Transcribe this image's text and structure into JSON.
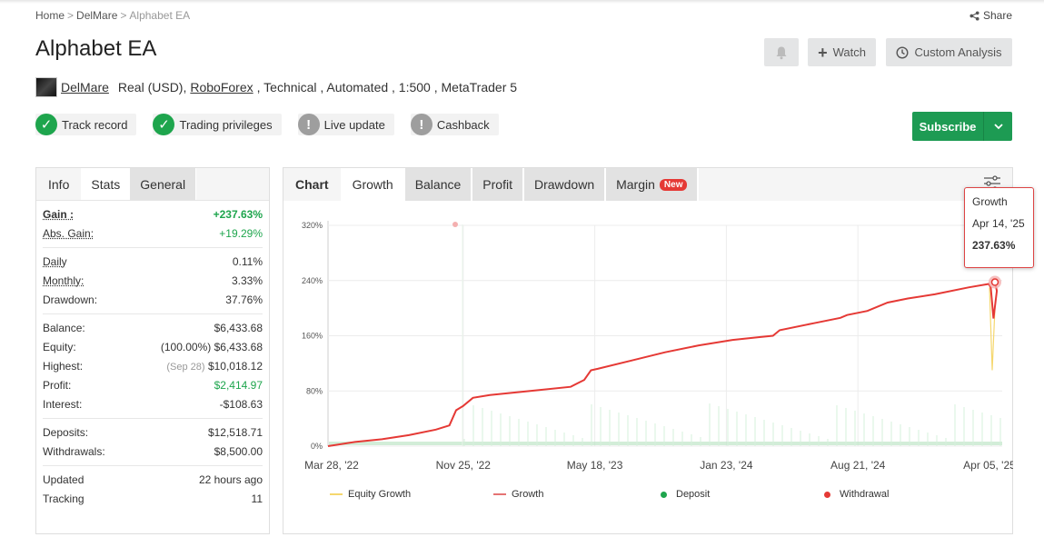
{
  "breadcrumb": {
    "home": "Home",
    "author": "DelMare",
    "current": "Alphabet EA"
  },
  "share_label": "Share",
  "title": "Alphabet EA",
  "header_buttons": {
    "watch": "Watch",
    "custom_analysis": "Custom Analysis"
  },
  "meta": {
    "author": "DelMare",
    "account": "Real (USD),",
    "broker": "RoboForex",
    "rest": ", Technical , Automated , 1:500 , MetaTrader 5"
  },
  "badges": [
    {
      "label": "Track record",
      "status": "ok"
    },
    {
      "label": "Trading privileges",
      "status": "ok"
    },
    {
      "label": "Live update",
      "status": "warn"
    },
    {
      "label": "Cashback",
      "status": "warn"
    }
  ],
  "subscribe_label": "Subscribe",
  "left_tabs": [
    "Info",
    "Stats",
    "General"
  ],
  "stats": {
    "gain_label": "Gain :",
    "gain": "+237.63%",
    "abs_gain_label": "Abs. Gain:",
    "abs_gain": "+19.29%",
    "daily_label": "Daily",
    "daily": "0.11%",
    "monthly_label": "Monthly:",
    "monthly": "3.33%",
    "drawdown_label": "Drawdown:",
    "drawdown": "37.76%",
    "balance_label": "Balance:",
    "balance": "$6,433.68",
    "equity_label": "Equity:",
    "equity_pct": "(100.00%)",
    "equity": "$6,433.68",
    "highest_label": "Highest:",
    "highest_date": "(Sep 28)",
    "highest": "$10,018.12",
    "profit_label": "Profit:",
    "profit": "$2,414.97",
    "interest_label": "Interest:",
    "interest": "-$108.63",
    "deposits_label": "Deposits:",
    "deposits": "$12,518.71",
    "withdrawals_label": "Withdrawals:",
    "withdrawals": "$8,500.00",
    "updated_label": "Updated",
    "updated": "22 hours ago",
    "tracking_label": "Tracking",
    "tracking": "11"
  },
  "chart_tabs": {
    "chart": "Chart",
    "growth": "Growth",
    "balance": "Balance",
    "profit": "Profit",
    "drawdown": "Drawdown",
    "margin": "Margin",
    "new_badge": "New"
  },
  "tooltip": {
    "series": "Growth",
    "date": "Apr 14, '25",
    "value": "237.63%"
  },
  "colors": {
    "growth": "#e53935",
    "equity": "#f5d76e",
    "deposit": "#1ea54d",
    "withdrawal": "#e53935",
    "subscribe": "#1d9b53"
  },
  "chart_data": {
    "type": "line",
    "y_ticks": [
      "320%",
      "240%",
      "160%",
      "80%",
      "0%"
    ],
    "ylim": [
      0,
      320
    ],
    "x_ticks": [
      "Mar 28, '22",
      "Nov 25, '22",
      "May 18, '23",
      "Jan 23, '24",
      "Aug 21, '24",
      "Apr 05, '25"
    ],
    "legend": [
      "Equity Growth",
      "Growth",
      "Deposit",
      "Withdrawal"
    ],
    "series": [
      {
        "name": "Growth",
        "x": [
          0,
          0.04,
          0.08,
          0.12,
          0.16,
          0.18,
          0.19,
          0.2,
          0.215,
          0.24,
          0.3,
          0.36,
          0.38,
          0.39,
          0.4,
          0.45,
          0.5,
          0.55,
          0.6,
          0.64,
          0.66,
          0.67,
          0.72,
          0.76,
          0.77,
          0.8,
          0.83,
          0.86,
          0.9,
          0.95,
          0.98,
          0.983,
          0.987,
          0.992,
          1.0
        ],
        "y": [
          0,
          6,
          10,
          16,
          24,
          30,
          52,
          58,
          70,
          74,
          80,
          86,
          96,
          110,
          112,
          124,
          136,
          146,
          154,
          158,
          160,
          168,
          178,
          186,
          190,
          196,
          208,
          214,
          220,
          230,
          235,
          230,
          185,
          225,
          237.63
        ]
      }
    ]
  }
}
